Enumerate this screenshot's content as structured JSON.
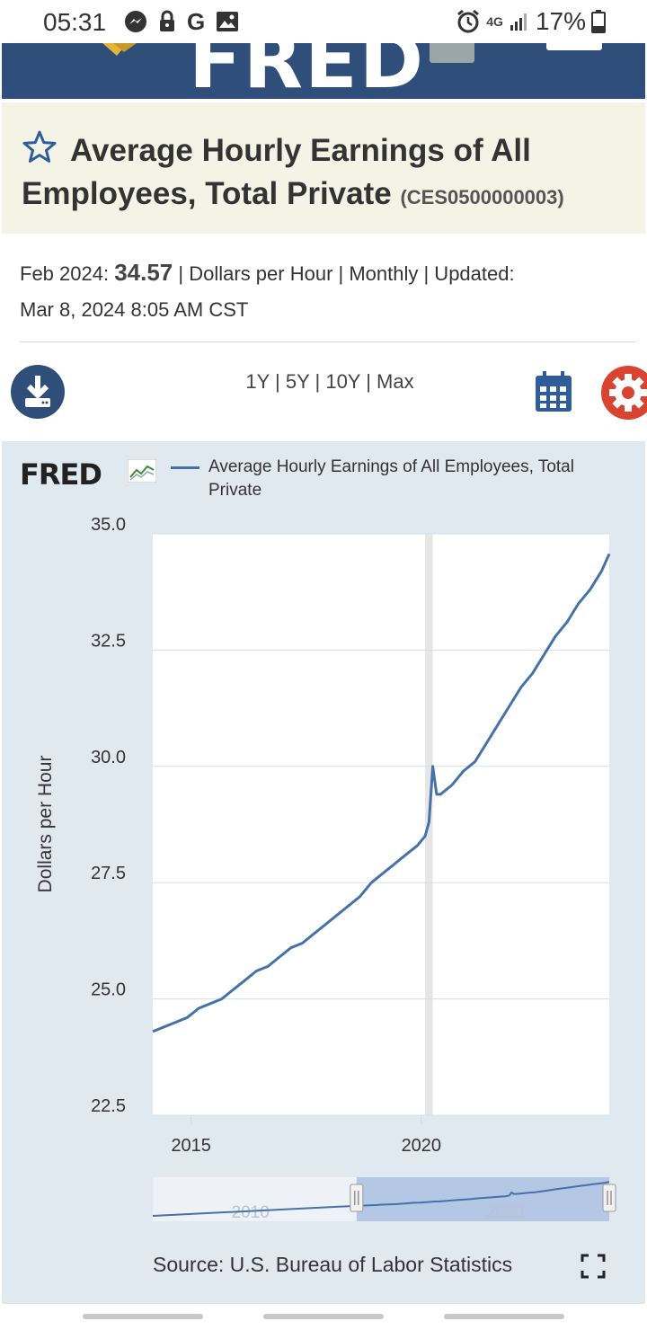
{
  "status_bar": {
    "time": "05:31",
    "network": "4G",
    "battery": "17%",
    "icons": [
      "messenger-icon",
      "lock-icon",
      "google-icon",
      "image-icon",
      "alarm-icon",
      "signal-icon",
      "battery-icon"
    ],
    "google_glyph": "G"
  },
  "header": {
    "logo_text": "FRED"
  },
  "series": {
    "title": "Average Hourly Earnings of All Employees, Total Private",
    "id": "(CES0500000003)",
    "date_label": "Feb 2024:",
    "value": "34.57",
    "details": "| Dollars per Hour | Monthly | Updated:",
    "updated": "Mar 8, 2024 8:05 AM CST"
  },
  "toolbar": {
    "ranges": [
      "1Y",
      "5Y",
      "10Y",
      "Max"
    ],
    "separator": " | "
  },
  "chart_data": {
    "type": "line",
    "title": "",
    "ylabel": "Dollars per Hour",
    "xlabel": "",
    "ylim": [
      22.5,
      35.0
    ],
    "y_ticks": [
      "35.0",
      "32.5",
      "30.0",
      "27.5",
      "25.0",
      "22.5"
    ],
    "x_ticks": [
      "2015",
      "2020"
    ],
    "xlim": [
      "2014-03",
      "2024-02"
    ],
    "legend_position": "top",
    "grid": true,
    "recession_shading": [
      [
        "2020-02",
        "2020-04"
      ]
    ],
    "series": [
      {
        "name": "Average Hourly Earnings of All Employees, Total Private",
        "color": "#4572a7",
        "x": [
          "2014-03",
          "2014-06",
          "2014-09",
          "2014-12",
          "2015-03",
          "2015-06",
          "2015-09",
          "2015-12",
          "2016-03",
          "2016-06",
          "2016-09",
          "2016-12",
          "2017-03",
          "2017-06",
          "2017-09",
          "2017-12",
          "2018-03",
          "2018-06",
          "2018-09",
          "2018-12",
          "2019-03",
          "2019-06",
          "2019-09",
          "2019-12",
          "2020-01",
          "2020-02",
          "2020-03",
          "2020-04",
          "2020-05",
          "2020-06",
          "2020-09",
          "2020-12",
          "2021-03",
          "2021-06",
          "2021-09",
          "2021-12",
          "2022-03",
          "2022-06",
          "2022-09",
          "2022-12",
          "2023-03",
          "2023-06",
          "2023-09",
          "2023-12",
          "2024-02"
        ],
        "values": [
          24.3,
          24.4,
          24.5,
          24.6,
          24.8,
          24.9,
          25.0,
          25.2,
          25.4,
          25.6,
          25.7,
          25.9,
          26.1,
          26.2,
          26.4,
          26.6,
          26.8,
          27.0,
          27.2,
          27.5,
          27.7,
          27.9,
          28.1,
          28.3,
          28.4,
          28.5,
          28.8,
          30.0,
          29.4,
          29.4,
          29.6,
          29.9,
          30.1,
          30.5,
          30.9,
          31.3,
          31.7,
          32.0,
          32.4,
          32.8,
          33.1,
          33.5,
          33.8,
          34.2,
          34.57
        ]
      }
    ],
    "navigator": {
      "ticks": [
        "2010",
        "2020"
      ],
      "selected_start": "2014-03",
      "selected_end": "2024-02"
    }
  },
  "footer": {
    "source": "Source: U.S. Bureau of Labor Statistics"
  }
}
